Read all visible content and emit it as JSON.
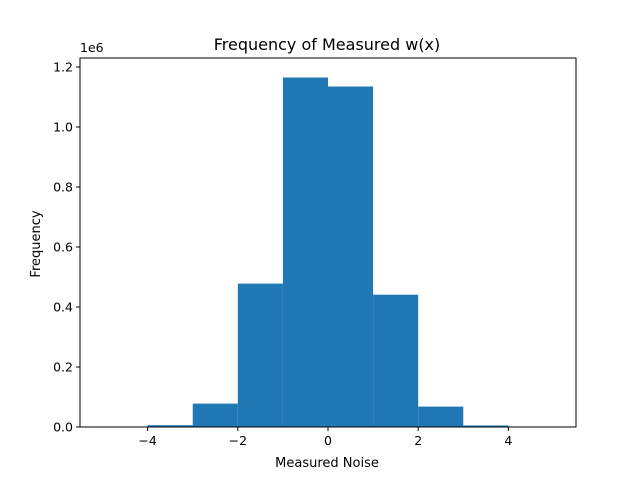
{
  "chart_data": {
    "type": "bar",
    "title": "Frequency of Measured w(x)",
    "xlabel": "Measured Noise",
    "ylabel": "Frequency",
    "y_offset_label": "1e6",
    "xlim": [
      -5.5,
      5.5
    ],
    "ylim": [
      0,
      1.23
    ],
    "x_ticks": [
      -4,
      -2,
      0,
      2,
      4
    ],
    "x_tick_labels": [
      "−4",
      "−2",
      "0",
      "2",
      "4"
    ],
    "y_ticks": [
      0,
      0.2,
      0.4,
      0.6,
      0.8,
      1.0,
      1.2
    ],
    "y_tick_labels": [
      "0.0",
      "0.2",
      "0.4",
      "0.6",
      "0.8",
      "1.0",
      "1.2"
    ],
    "grid": false,
    "bar_color": "#1f77b4",
    "series": [
      {
        "bins": [
          {
            "x0": -5,
            "x1": -4,
            "value": 0.0003
          },
          {
            "x0": -4,
            "x1": -3,
            "value": 0.006
          },
          {
            "x0": -3,
            "x1": -2,
            "value": 0.078
          },
          {
            "x0": -2,
            "x1": -1,
            "value": 0.478
          },
          {
            "x0": -1,
            "x1": 0,
            "value": 1.165
          },
          {
            "x0": 0,
            "x1": 1,
            "value": 1.135
          },
          {
            "x0": 1,
            "x1": 2,
            "value": 0.441
          },
          {
            "x0": 2,
            "x1": 3,
            "value": 0.068
          },
          {
            "x0": 3,
            "x1": 4,
            "value": 0.005
          },
          {
            "x0": 4,
            "x1": 5,
            "value": 0.0003
          }
        ]
      }
    ]
  }
}
